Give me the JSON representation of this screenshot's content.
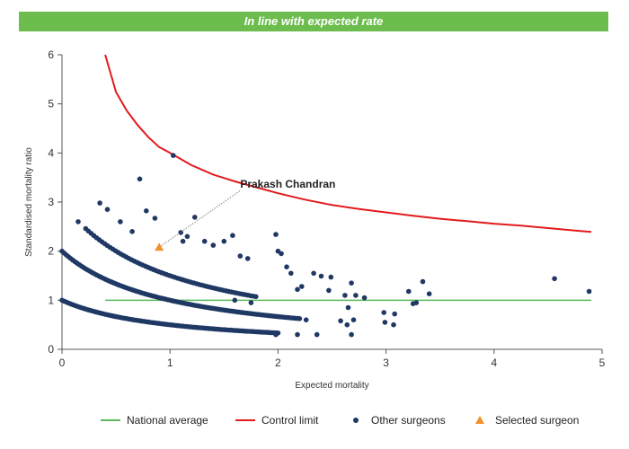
{
  "banner": {
    "text": "In line with expected rate",
    "color": "#6cbd4e"
  },
  "chart_data": {
    "type": "scatter",
    "xlabel": "Expected mortality",
    "ylabel": "Standardised mortality ratio",
    "xlim": [
      0,
      5
    ],
    "ylim": [
      0,
      6
    ],
    "x_ticks": [
      "0",
      "1",
      "2",
      "3",
      "4",
      "5"
    ],
    "y_ticks": [
      "0",
      "1",
      "2",
      "3",
      "4",
      "5",
      "6"
    ],
    "grid": false,
    "legend_position": "bottom",
    "legend": [
      {
        "label": "National average",
        "marker": "line",
        "color": "#5cb85c"
      },
      {
        "label": "Control limit",
        "marker": "line",
        "color": "#e31a1c"
      },
      {
        "label": "Other surgeons",
        "marker": "circle",
        "color": "#1f3864"
      },
      {
        "label": "Selected surgeon",
        "marker": "triangle",
        "color": "#f0922b"
      }
    ],
    "national_average": {
      "y": 1,
      "x_range": [
        0.4,
        4.9
      ],
      "color": "#5cb85c"
    },
    "control_limit": {
      "color": "#e31a1c",
      "points": [
        [
          0.4,
          6.0
        ],
        [
          0.5,
          5.24
        ],
        [
          0.6,
          4.86
        ],
        [
          0.7,
          4.57
        ],
        [
          0.8,
          4.32
        ],
        [
          0.9,
          4.12
        ],
        [
          1.0,
          4.0
        ],
        [
          1.2,
          3.75
        ],
        [
          1.4,
          3.56
        ],
        [
          1.6,
          3.42
        ],
        [
          1.8,
          3.3
        ],
        [
          2.0,
          3.18
        ],
        [
          2.25,
          3.05
        ],
        [
          2.5,
          2.94
        ],
        [
          2.75,
          2.86
        ],
        [
          3.0,
          2.79
        ],
        [
          3.25,
          2.72
        ],
        [
          3.5,
          2.66
        ],
        [
          3.75,
          2.61
        ],
        [
          4.0,
          2.56
        ],
        [
          4.25,
          2.52
        ],
        [
          4.5,
          2.47
        ],
        [
          4.75,
          2.42
        ],
        [
          4.9,
          2.39
        ]
      ]
    },
    "series": [
      {
        "name": "Other surgeons",
        "color": "#1f3864",
        "curves": [
          {
            "k": 1,
            "x_range": [
              0.0,
              2.0
            ],
            "step": 0.02
          },
          {
            "k": 2,
            "x_range": [
              0.0,
              2.2
            ],
            "step": 0.02
          },
          {
            "k": 3,
            "x_range": [
              0.22,
              1.8
            ],
            "step": 0.025
          }
        ],
        "points": [
          [
            0.15,
            2.6
          ],
          [
            0.35,
            2.98
          ],
          [
            0.42,
            2.85
          ],
          [
            0.54,
            2.6
          ],
          [
            0.65,
            2.4
          ],
          [
            0.72,
            3.47
          ],
          [
            0.78,
            2.82
          ],
          [
            0.86,
            2.67
          ],
          [
            1.03,
            3.95
          ],
          [
            1.1,
            2.38
          ],
          [
            1.12,
            2.2
          ],
          [
            1.16,
            2.3
          ],
          [
            1.23,
            2.69
          ],
          [
            1.32,
            2.2
          ],
          [
            1.4,
            2.12
          ],
          [
            1.5,
            2.2
          ],
          [
            1.58,
            2.32
          ],
          [
            1.65,
            1.9
          ],
          [
            1.72,
            1.85
          ],
          [
            1.6,
            1.0
          ],
          [
            1.75,
            0.95
          ],
          [
            1.98,
            2.34
          ],
          [
            2.0,
            2.0
          ],
          [
            2.03,
            1.95
          ],
          [
            2.08,
            1.68
          ],
          [
            2.12,
            1.55
          ],
          [
            2.18,
            1.22
          ],
          [
            2.22,
            1.28
          ],
          [
            2.26,
            0.6
          ],
          [
            2.33,
            1.55
          ],
          [
            2.4,
            1.49
          ],
          [
            2.47,
            1.2
          ],
          [
            2.49,
            1.47
          ],
          [
            2.58,
            0.58
          ],
          [
            2.62,
            1.1
          ],
          [
            2.65,
            0.85
          ],
          [
            2.68,
            1.35
          ],
          [
            2.7,
            0.6
          ],
          [
            2.72,
            1.1
          ],
          [
            2.8,
            1.05
          ],
          [
            2.64,
            0.5
          ],
          [
            2.68,
            0.3
          ],
          [
            2.98,
            0.75
          ],
          [
            2.99,
            0.55
          ],
          [
            3.07,
            0.5
          ],
          [
            3.08,
            0.72
          ],
          [
            3.21,
            1.18
          ],
          [
            3.25,
            0.93
          ],
          [
            3.28,
            0.95
          ],
          [
            3.34,
            1.38
          ],
          [
            3.4,
            1.13
          ],
          [
            4.56,
            1.44
          ],
          [
            4.88,
            1.18
          ],
          [
            1.98,
            0.3
          ],
          [
            2.18,
            0.3
          ],
          [
            2.36,
            0.3
          ]
        ]
      },
      {
        "name": "Selected surgeon",
        "color": "#f0922b",
        "points": [
          [
            0.9,
            2.08
          ]
        ]
      }
    ],
    "annotations": [
      {
        "text": "Prakash Chandran",
        "target": [
          0.9,
          2.08
        ],
        "text_at": [
          1.65,
          3.38
        ]
      }
    ]
  }
}
